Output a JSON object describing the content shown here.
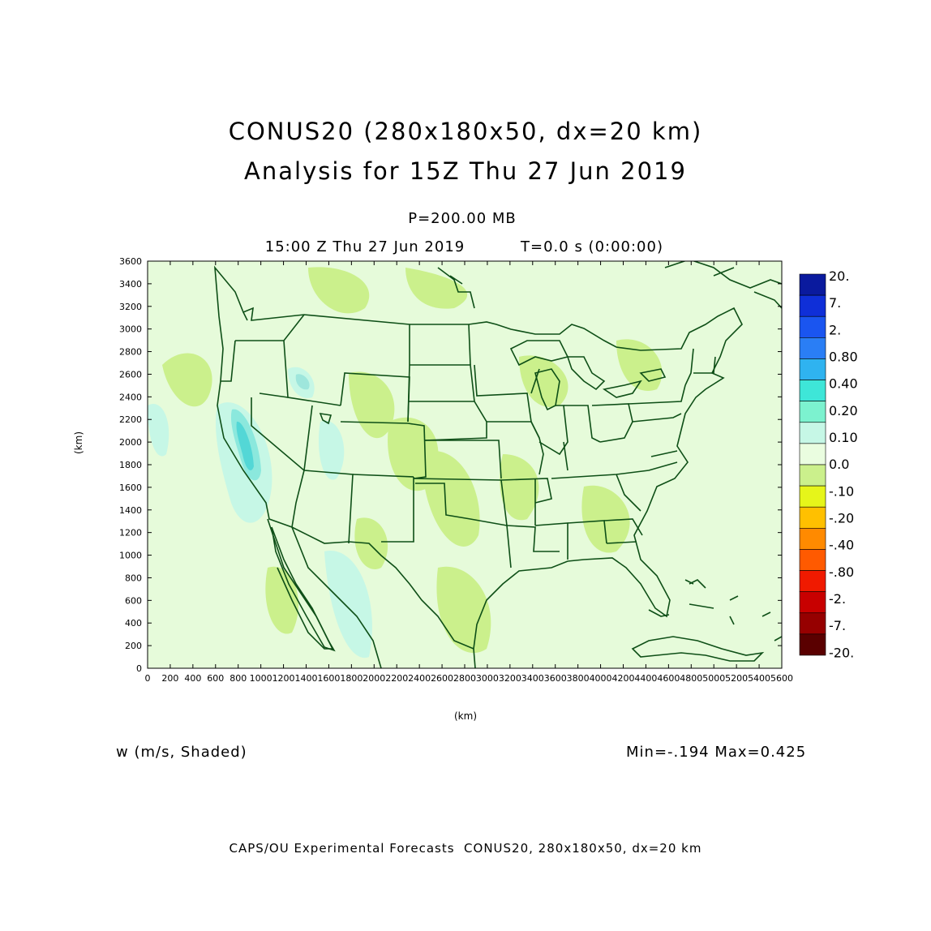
{
  "title_line1": "CONUS20 (280x180x50, dx=20 km)",
  "title_line2": "Analysis for 15Z Thu 27 Jun 2019",
  "level": "P=200.00 MB",
  "valid_time": "15:00 Z Thu 27 Jun 2019",
  "forecast_time": "T=0.0 s (0:00:00)",
  "field_label": "w (m/s, Shaded)",
  "min_max": "Min=-.194 Max=0.425",
  "footer": "CAPS/OU Experimental Forecasts  CONUS20, 280x180x50, dx=20 km",
  "x_axis": {
    "label": "(km)",
    "range": [
      0,
      5600
    ],
    "ticks": [
      "0",
      "200",
      "400",
      "600",
      "800",
      "1000",
      "1200",
      "1400",
      "1600",
      "1800",
      "2000",
      "2200",
      "2400",
      "2600",
      "2800",
      "3000",
      "3200",
      "3400",
      "3600",
      "3800",
      "4000",
      "4200",
      "4400",
      "4600",
      "4800",
      "5000",
      "5200",
      "5400",
      "5600"
    ]
  },
  "y_axis": {
    "label": "(km)",
    "range": [
      0,
      3600
    ],
    "ticks": [
      "0",
      "200",
      "400",
      "600",
      "800",
      "1000",
      "1200",
      "1400",
      "1600",
      "1800",
      "2000",
      "2200",
      "2400",
      "2600",
      "2800",
      "3000",
      "3200",
      "3400",
      "3600"
    ]
  },
  "colorbar": {
    "labels": [
      "20.",
      "7.",
      "2.",
      "0.80",
      "0.40",
      "0.20",
      "0.10",
      "0.0",
      "-.10",
      "-.20",
      "-.40",
      "-.80",
      "-2.",
      "-7.",
      "-20."
    ],
    "colors": [
      "#0a1a9e",
      "#0f2fd8",
      "#1a55f0",
      "#2a7ef5",
      "#2fb3f0",
      "#3ee6d8",
      "#7cf2cf",
      "#c6f7e6",
      "#eafde0",
      "#cbf08c",
      "#e6f51a",
      "#ffc000",
      "#ff8a00",
      "#ff5a00",
      "#f01a00",
      "#c80000",
      "#960000",
      "#5a0000"
    ]
  },
  "colors": {
    "background_field": "#e6fbda",
    "coastline": "#0e4f17",
    "positive_light": "#c6f7e6",
    "negative_light": "#cbf08c"
  }
}
